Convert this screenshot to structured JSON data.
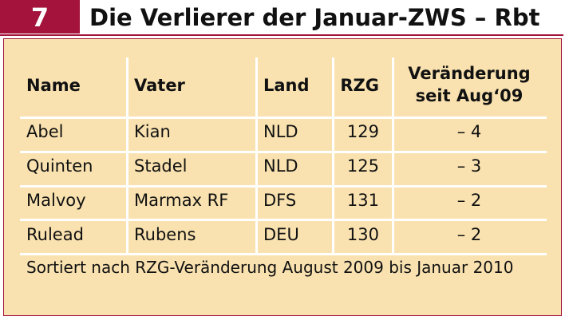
{
  "header": {
    "number": "7",
    "title": "Die Verlierer der Januar-ZWS – Rbt"
  },
  "table": {
    "columns": [
      "Name",
      "Vater",
      "Land",
      "RZG",
      [
        "Veränderung",
        "seit Aug‘09"
      ]
    ],
    "rows": [
      [
        "Abel",
        "Kian",
        "NLD",
        129,
        "– 4"
      ],
      [
        "Quinten",
        "Stadel",
        "NLD",
        125,
        "– 3"
      ],
      [
        "Malvoy",
        "Marmax RF",
        "DFS",
        131,
        "– 2"
      ],
      [
        "Rulead",
        "Rubens",
        "DEU",
        130,
        "– 2"
      ]
    ]
  },
  "footnote": "Sortiert nach RZG-Veränderung August 2009 bis Januar 2010"
}
